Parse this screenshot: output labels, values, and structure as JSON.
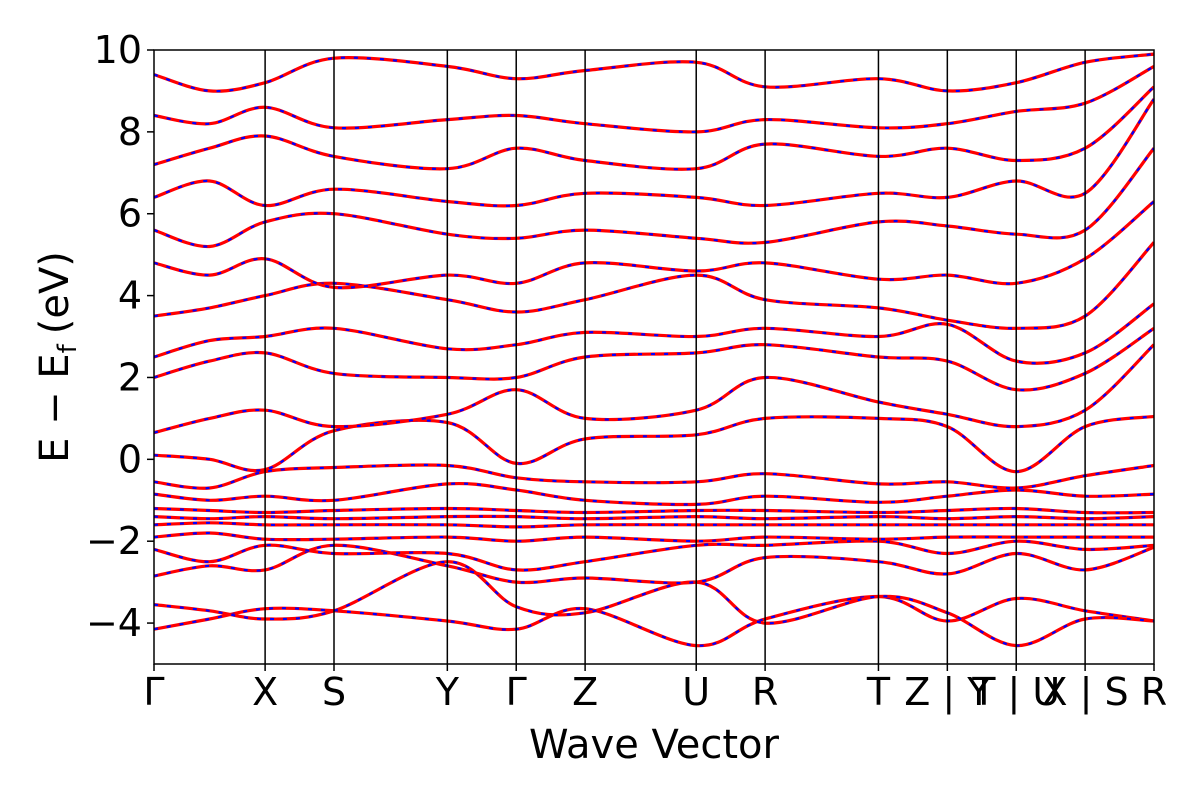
{
  "chart_data": {
    "type": "line",
    "xlabel": "Wave Vector",
    "ylabel": "E − E",
    "ylabel_subscript": "f",
    "ylabel_unit": "(eV)",
    "ylim": [
      -5,
      10
    ],
    "yticks": [
      -4,
      -2,
      0,
      2,
      4,
      6,
      8,
      10
    ],
    "grid": false,
    "legend": "none",
    "colors": {
      "band_line": "#ff0000",
      "band_dash": "#0000ff",
      "divider": "#000000"
    },
    "kpath": [
      {
        "label": "Γ",
        "x": 0.0
      },
      {
        "label": "X",
        "x": 1.0
      },
      {
        "label": "S",
        "x": 1.62
      },
      {
        "label": "Y",
        "x": 2.64
      },
      {
        "label": "Γ",
        "x": 3.26
      },
      {
        "label": "Z",
        "x": 3.88
      },
      {
        "label": "U",
        "x": 4.88
      },
      {
        "label": "R",
        "x": 5.5
      },
      {
        "label": "T",
        "x": 6.52
      },
      {
        "label": "Z | Y",
        "x": 7.14
      },
      {
        "label": "T | U",
        "x": 7.76
      },
      {
        "label": "X | S",
        "x": 8.38
      },
      {
        "label": "R",
        "x": 9.0
      }
    ],
    "series": [
      {
        "values": [
          [
            0,
            -4.15
          ],
          [
            0.5,
            -3.9
          ],
          [
            1.0,
            -3.65
          ],
          [
            1.62,
            -3.7
          ],
          [
            2.64,
            -3.95
          ],
          [
            3.26,
            -4.15
          ],
          [
            3.88,
            -3.65
          ],
          [
            4.88,
            -4.55
          ],
          [
            5.5,
            -3.9
          ],
          [
            6.52,
            -3.35
          ],
          [
            7.14,
            -3.95
          ],
          [
            7.76,
            -3.4
          ],
          [
            8.38,
            -3.7
          ],
          [
            9.0,
            -3.95
          ]
        ]
      },
      {
        "values": [
          [
            0,
            -3.55
          ],
          [
            0.5,
            -3.7
          ],
          [
            1.0,
            -3.9
          ],
          [
            1.62,
            -3.7
          ],
          [
            2.64,
            -2.5
          ],
          [
            3.26,
            -3.6
          ],
          [
            3.88,
            -3.75
          ],
          [
            4.88,
            -3.0
          ],
          [
            5.5,
            -4.0
          ],
          [
            6.52,
            -3.35
          ],
          [
            7.14,
            -3.75
          ],
          [
            7.76,
            -4.55
          ],
          [
            8.38,
            -3.9
          ],
          [
            9.0,
            -3.95
          ]
        ]
      },
      {
        "values": [
          [
            0,
            -2.85
          ],
          [
            0.5,
            -2.6
          ],
          [
            1.0,
            -2.7
          ],
          [
            1.62,
            -2.1
          ],
          [
            2.64,
            -2.6
          ],
          [
            3.26,
            -3.0
          ],
          [
            3.88,
            -2.9
          ],
          [
            4.88,
            -3.0
          ],
          [
            5.5,
            -2.4
          ],
          [
            6.52,
            -2.5
          ],
          [
            7.14,
            -2.8
          ],
          [
            7.76,
            -2.3
          ],
          [
            8.38,
            -2.7
          ],
          [
            9.0,
            -2.15
          ]
        ]
      },
      {
        "values": [
          [
            0,
            -2.2
          ],
          [
            0.5,
            -2.5
          ],
          [
            1.0,
            -2.1
          ],
          [
            1.62,
            -2.3
          ],
          [
            2.64,
            -2.3
          ],
          [
            3.26,
            -2.7
          ],
          [
            3.88,
            -2.5
          ],
          [
            4.88,
            -2.1
          ],
          [
            5.5,
            -2.1
          ],
          [
            6.52,
            -2.0
          ],
          [
            7.14,
            -2.3
          ],
          [
            7.76,
            -2.0
          ],
          [
            8.38,
            -2.2
          ],
          [
            9.0,
            -2.1
          ]
        ]
      },
      {
        "values": [
          [
            0,
            -1.9
          ],
          [
            0.5,
            -1.8
          ],
          [
            1.0,
            -1.95
          ],
          [
            1.62,
            -1.95
          ],
          [
            2.64,
            -1.9
          ],
          [
            3.26,
            -2.0
          ],
          [
            3.88,
            -1.9
          ],
          [
            4.88,
            -2.0
          ],
          [
            5.5,
            -1.9
          ],
          [
            6.52,
            -1.95
          ],
          [
            7.14,
            -1.9
          ],
          [
            7.76,
            -1.9
          ],
          [
            8.38,
            -1.9
          ],
          [
            9.0,
            -1.9
          ]
        ]
      },
      {
        "values": [
          [
            0,
            -1.6
          ],
          [
            0.5,
            -1.55
          ],
          [
            1.0,
            -1.6
          ],
          [
            1.62,
            -1.6
          ],
          [
            2.64,
            -1.6
          ],
          [
            3.26,
            -1.65
          ],
          [
            3.88,
            -1.6
          ],
          [
            4.88,
            -1.6
          ],
          [
            5.5,
            -1.6
          ],
          [
            6.52,
            -1.6
          ],
          [
            7.14,
            -1.6
          ],
          [
            7.76,
            -1.6
          ],
          [
            8.38,
            -1.6
          ],
          [
            9.0,
            -1.6
          ]
        ]
      },
      {
        "values": [
          [
            0,
            -1.4
          ],
          [
            0.5,
            -1.45
          ],
          [
            1.0,
            -1.4
          ],
          [
            1.62,
            -1.45
          ],
          [
            2.64,
            -1.4
          ],
          [
            3.26,
            -1.4
          ],
          [
            3.88,
            -1.45
          ],
          [
            4.88,
            -1.4
          ],
          [
            5.5,
            -1.45
          ],
          [
            6.52,
            -1.4
          ],
          [
            7.14,
            -1.45
          ],
          [
            7.76,
            -1.4
          ],
          [
            8.38,
            -1.45
          ],
          [
            9.0,
            -1.4
          ]
        ]
      },
      {
        "values": [
          [
            0,
            -1.2
          ],
          [
            0.5,
            -1.25
          ],
          [
            1.0,
            -1.3
          ],
          [
            1.62,
            -1.25
          ],
          [
            2.64,
            -1.2
          ],
          [
            3.26,
            -1.25
          ],
          [
            3.88,
            -1.3
          ],
          [
            4.88,
            -1.25
          ],
          [
            5.5,
            -1.25
          ],
          [
            6.52,
            -1.3
          ],
          [
            7.14,
            -1.25
          ],
          [
            7.76,
            -1.2
          ],
          [
            8.38,
            -1.3
          ],
          [
            9.0,
            -1.3
          ]
        ]
      },
      {
        "values": [
          [
            0,
            -0.85
          ],
          [
            0.5,
            -1.0
          ],
          [
            1.0,
            -0.9
          ],
          [
            1.62,
            -1.0
          ],
          [
            2.64,
            -0.6
          ],
          [
            3.26,
            -0.75
          ],
          [
            3.88,
            -1.0
          ],
          [
            4.88,
            -1.1
          ],
          [
            5.5,
            -0.9
          ],
          [
            6.52,
            -1.05
          ],
          [
            7.14,
            -0.9
          ],
          [
            7.76,
            -0.75
          ],
          [
            8.38,
            -0.9
          ],
          [
            9.0,
            -0.85
          ]
        ]
      },
      {
        "values": [
          [
            0,
            -0.55
          ],
          [
            0.5,
            -0.7
          ],
          [
            1.0,
            -0.3
          ],
          [
            1.62,
            -0.2
          ],
          [
            2.64,
            -0.15
          ],
          [
            3.26,
            -0.45
          ],
          [
            3.88,
            -0.55
          ],
          [
            4.88,
            -0.55
          ],
          [
            5.5,
            -0.35
          ],
          [
            6.52,
            -0.6
          ],
          [
            7.14,
            -0.55
          ],
          [
            7.76,
            -0.7
          ],
          [
            8.38,
            -0.4
          ],
          [
            9.0,
            -0.15
          ]
        ]
      },
      {
        "values": [
          [
            0,
            0.1
          ],
          [
            0.5,
            0.0
          ],
          [
            1.0,
            -0.25
          ],
          [
            1.62,
            0.7
          ],
          [
            2.64,
            0.9
          ],
          [
            3.26,
            -0.1
          ],
          [
            3.88,
            0.5
          ],
          [
            4.88,
            0.6
          ],
          [
            5.5,
            1.0
          ],
          [
            6.52,
            1.0
          ],
          [
            7.14,
            0.8
          ],
          [
            7.76,
            -0.3
          ],
          [
            8.38,
            0.8
          ],
          [
            9.0,
            1.05
          ]
        ]
      },
      {
        "values": [
          [
            0,
            0.65
          ],
          [
            0.5,
            1.0
          ],
          [
            1.0,
            1.2
          ],
          [
            1.62,
            0.8
          ],
          [
            2.64,
            1.1
          ],
          [
            3.26,
            1.7
          ],
          [
            3.88,
            1.0
          ],
          [
            4.88,
            1.2
          ],
          [
            5.5,
            2.0
          ],
          [
            6.52,
            1.4
          ],
          [
            7.14,
            1.1
          ],
          [
            7.76,
            0.8
          ],
          [
            8.38,
            1.2
          ],
          [
            9.0,
            2.8
          ]
        ]
      },
      {
        "values": [
          [
            0,
            2.0
          ],
          [
            0.5,
            2.4
          ],
          [
            1.0,
            2.6
          ],
          [
            1.62,
            2.1
          ],
          [
            2.64,
            2.0
          ],
          [
            3.26,
            2.0
          ],
          [
            3.88,
            2.5
          ],
          [
            4.88,
            2.6
          ],
          [
            5.5,
            2.8
          ],
          [
            6.52,
            2.5
          ],
          [
            7.14,
            2.4
          ],
          [
            7.76,
            1.7
          ],
          [
            8.38,
            2.1
          ],
          [
            9.0,
            3.2
          ]
        ]
      },
      {
        "values": [
          [
            0,
            2.5
          ],
          [
            0.5,
            2.9
          ],
          [
            1.0,
            3.0
          ],
          [
            1.62,
            3.2
          ],
          [
            2.64,
            2.7
          ],
          [
            3.26,
            2.8
          ],
          [
            3.88,
            3.1
          ],
          [
            4.88,
            3.0
          ],
          [
            5.5,
            3.2
          ],
          [
            6.52,
            3.0
          ],
          [
            7.14,
            3.3
          ],
          [
            7.76,
            2.4
          ],
          [
            8.38,
            2.6
          ],
          [
            9.0,
            3.8
          ]
        ]
      },
      {
        "values": [
          [
            0,
            3.5
          ],
          [
            0.5,
            3.7
          ],
          [
            1.0,
            4.0
          ],
          [
            1.62,
            4.3
          ],
          [
            2.64,
            3.9
          ],
          [
            3.26,
            3.6
          ],
          [
            3.88,
            3.9
          ],
          [
            4.88,
            4.5
          ],
          [
            5.5,
            3.9
          ],
          [
            6.52,
            3.7
          ],
          [
            7.14,
            3.4
          ],
          [
            7.76,
            3.2
          ],
          [
            8.38,
            3.5
          ],
          [
            9.0,
            5.3
          ]
        ]
      },
      {
        "values": [
          [
            0,
            4.8
          ],
          [
            0.5,
            4.5
          ],
          [
            1.0,
            4.9
          ],
          [
            1.62,
            4.2
          ],
          [
            2.64,
            4.5
          ],
          [
            3.26,
            4.3
          ],
          [
            3.88,
            4.8
          ],
          [
            4.88,
            4.6
          ],
          [
            5.5,
            4.8
          ],
          [
            6.52,
            4.4
          ],
          [
            7.14,
            4.5
          ],
          [
            7.76,
            4.3
          ],
          [
            8.38,
            4.9
          ],
          [
            9.0,
            6.3
          ]
        ]
      },
      {
        "values": [
          [
            0,
            5.6
          ],
          [
            0.5,
            5.2
          ],
          [
            1.0,
            5.8
          ],
          [
            1.62,
            6.0
          ],
          [
            2.64,
            5.5
          ],
          [
            3.26,
            5.4
          ],
          [
            3.88,
            5.6
          ],
          [
            4.88,
            5.4
          ],
          [
            5.5,
            5.3
          ],
          [
            6.52,
            5.8
          ],
          [
            7.14,
            5.7
          ],
          [
            7.76,
            5.5
          ],
          [
            8.38,
            5.6
          ],
          [
            9.0,
            7.6
          ]
        ]
      },
      {
        "values": [
          [
            0,
            6.4
          ],
          [
            0.5,
            6.8
          ],
          [
            1.0,
            6.2
          ],
          [
            1.62,
            6.6
          ],
          [
            2.64,
            6.3
          ],
          [
            3.26,
            6.2
          ],
          [
            3.88,
            6.5
          ],
          [
            4.88,
            6.4
          ],
          [
            5.5,
            6.2
          ],
          [
            6.52,
            6.5
          ],
          [
            7.14,
            6.4
          ],
          [
            7.76,
            6.8
          ],
          [
            8.38,
            6.5
          ],
          [
            9.0,
            8.8
          ]
        ]
      },
      {
        "values": [
          [
            0,
            7.2
          ],
          [
            0.5,
            7.6
          ],
          [
            1.0,
            7.9
          ],
          [
            1.62,
            7.4
          ],
          [
            2.64,
            7.1
          ],
          [
            3.26,
            7.6
          ],
          [
            3.88,
            7.3
          ],
          [
            4.88,
            7.1
          ],
          [
            5.5,
            7.7
          ],
          [
            6.52,
            7.4
          ],
          [
            7.14,
            7.6
          ],
          [
            7.76,
            7.3
          ],
          [
            8.38,
            7.6
          ],
          [
            9.0,
            9.1
          ]
        ]
      },
      {
        "values": [
          [
            0,
            8.4
          ],
          [
            0.5,
            8.2
          ],
          [
            1.0,
            8.6
          ],
          [
            1.62,
            8.1
          ],
          [
            2.64,
            8.3
          ],
          [
            3.26,
            8.4
          ],
          [
            3.88,
            8.2
          ],
          [
            4.88,
            8.0
          ],
          [
            5.5,
            8.3
          ],
          [
            6.52,
            8.1
          ],
          [
            7.14,
            8.2
          ],
          [
            7.76,
            8.5
          ],
          [
            8.38,
            8.7
          ],
          [
            9.0,
            9.6
          ]
        ]
      },
      {
        "values": [
          [
            0,
            9.4
          ],
          [
            0.5,
            9.0
          ],
          [
            1.0,
            9.2
          ],
          [
            1.62,
            9.8
          ],
          [
            2.64,
            9.6
          ],
          [
            3.26,
            9.3
          ],
          [
            3.88,
            9.5
          ],
          [
            4.88,
            9.7
          ],
          [
            5.5,
            9.1
          ],
          [
            6.52,
            9.3
          ],
          [
            7.14,
            9.0
          ],
          [
            7.76,
            9.2
          ],
          [
            8.38,
            9.7
          ],
          [
            9.0,
            9.9
          ]
        ]
      }
    ]
  }
}
